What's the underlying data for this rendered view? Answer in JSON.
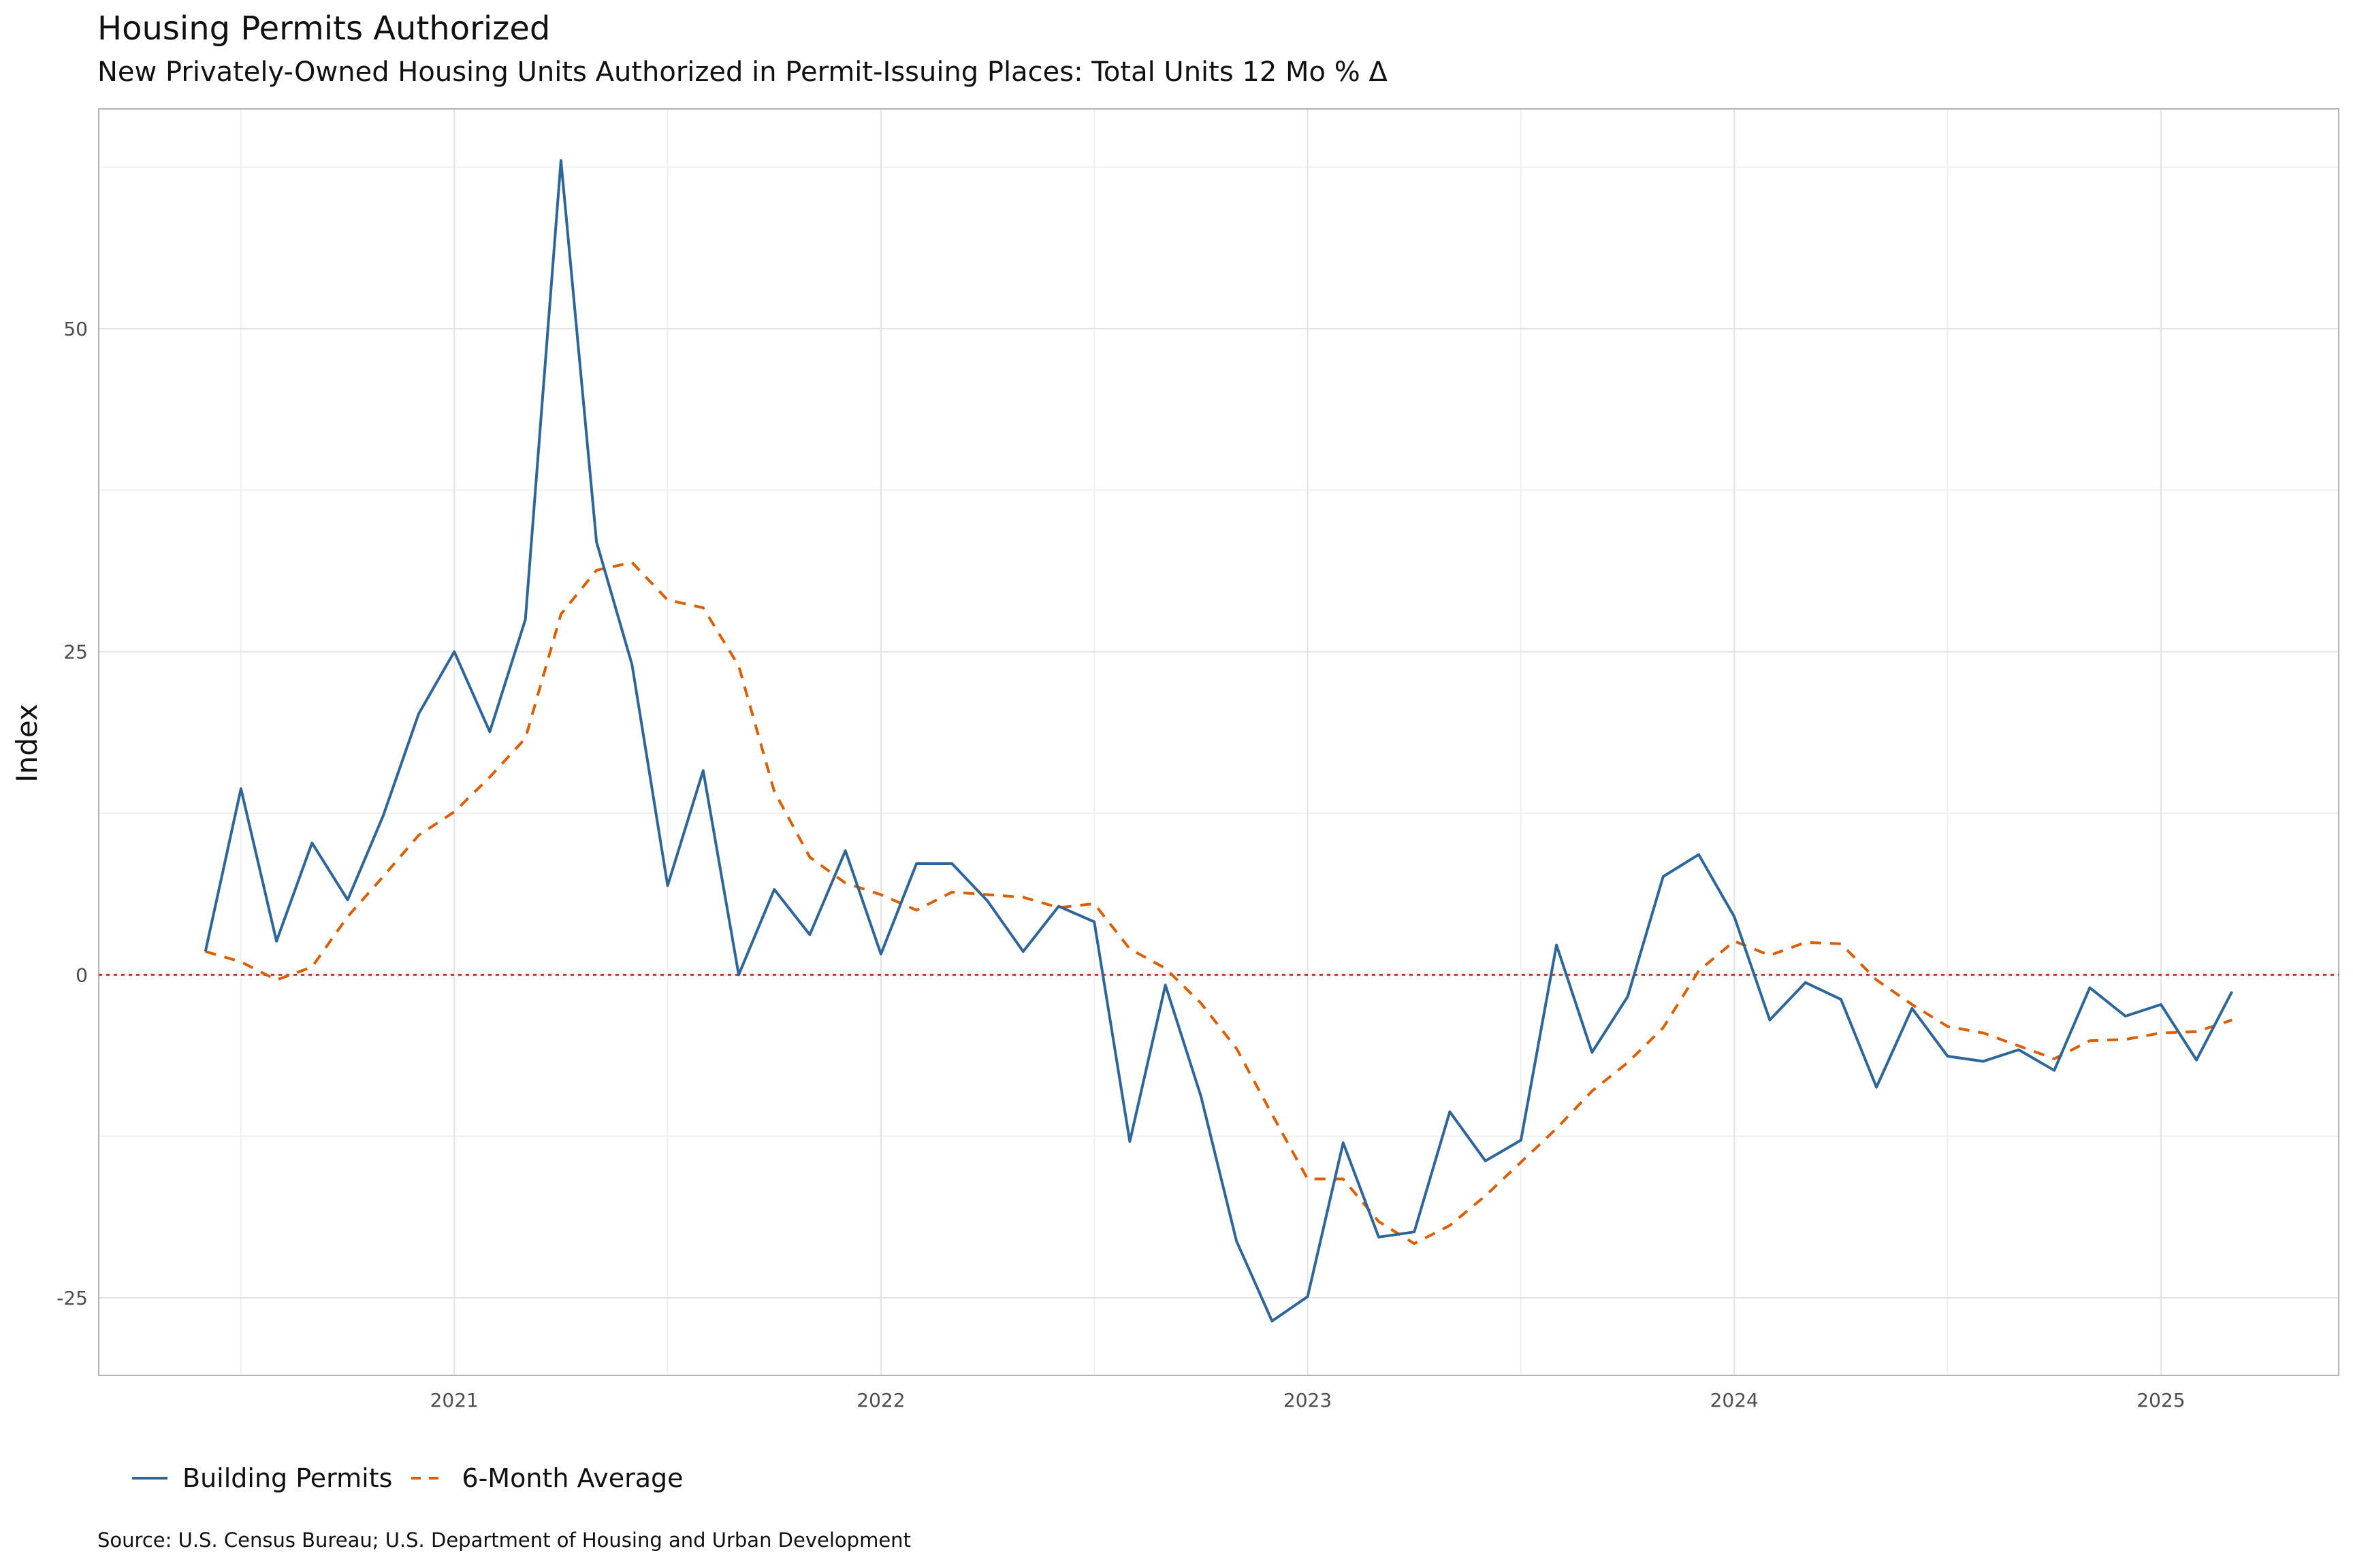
{
  "chart_data": {
    "type": "line",
    "title": "Housing Permits Authorized",
    "subtitle": "New Privately-Owned Housing Units Authorized in Permit-Issuing Places: Total Units 12 Mo % Δ",
    "ylabel": "Index",
    "xlabel": "",
    "caption": "Source: U.S. Census Bureau; U.S. Department of Housing and Urban Development",
    "x_ticks": [
      "2021",
      "2022",
      "2023",
      "2024",
      "2025"
    ],
    "y_ticks": [
      -25,
      0,
      25,
      50
    ],
    "ylim": [
      -31,
      67
    ],
    "xlim": [
      "2020-03",
      "2025-06"
    ],
    "grid": true,
    "legend_position": "bottom-left",
    "reference_line": {
      "y": 0,
      "style": "dotted",
      "color": "#C0392B"
    },
    "x": [
      "2020-06",
      "2020-07",
      "2020-08",
      "2020-09",
      "2020-10",
      "2020-11",
      "2020-12",
      "2021-01",
      "2021-02",
      "2021-03",
      "2021-04",
      "2021-05",
      "2021-06",
      "2021-07",
      "2021-08",
      "2021-09",
      "2021-10",
      "2021-11",
      "2021-12",
      "2022-01",
      "2022-02",
      "2022-03",
      "2022-04",
      "2022-05",
      "2022-06",
      "2022-07",
      "2022-08",
      "2022-09",
      "2022-10",
      "2022-11",
      "2022-12",
      "2023-01",
      "2023-02",
      "2023-03",
      "2023-04",
      "2023-05",
      "2023-06",
      "2023-07",
      "2023-08",
      "2023-09",
      "2023-10",
      "2023-11",
      "2023-12",
      "2024-01",
      "2024-02",
      "2024-03",
      "2024-04",
      "2024-05",
      "2024-06",
      "2024-07",
      "2024-08",
      "2024-09",
      "2024-10",
      "2024-11",
      "2024-12",
      "2025-01",
      "2025-02",
      "2025-03"
    ],
    "series": [
      {
        "name": "Building Permits",
        "color": "#2E6699",
        "style": "solid",
        "values": [
          1.8,
          14.4,
          2.6,
          10.2,
          5.8,
          12.3,
          20.2,
          25.0,
          18.8,
          27.5,
          63.0,
          33.5,
          24.0,
          6.9,
          15.8,
          0.0,
          6.6,
          3.1,
          9.6,
          1.6,
          8.6,
          8.6,
          5.7,
          1.8,
          5.3,
          4.1,
          -12.9,
          -0.8,
          -9.4,
          -20.6,
          -26.8,
          -24.9,
          -13.0,
          -20.3,
          -19.9,
          -10.6,
          -14.4,
          -12.8,
          2.3,
          -6.0,
          -1.7,
          7.6,
          9.3,
          4.5,
          -3.5,
          -0.6,
          -1.9,
          -8.7,
          -2.6,
          -6.3,
          -6.7,
          -5.8,
          -7.4,
          -1.0,
          -3.2,
          -2.3,
          -6.6,
          -1.3
        ]
      },
      {
        "name": "6-Month Average",
        "color": "#D95F02",
        "style": "dashed",
        "values": [
          1.8,
          1.0,
          -0.4,
          0.6,
          4.5,
          7.6,
          10.8,
          12.6,
          15.3,
          18.3,
          27.9,
          31.3,
          31.9,
          29.0,
          28.4,
          23.9,
          14.2,
          9.1,
          7.1,
          6.2,
          5.0,
          6.4,
          6.2,
          6.0,
          5.2,
          5.5,
          2.0,
          0.5,
          -2.2,
          -5.7,
          -10.8,
          -15.8,
          -15.8,
          -19.1,
          -20.8,
          -19.4,
          -17.1,
          -14.5,
          -11.9,
          -9.0,
          -6.8,
          -4.1,
          0.3,
          2.6,
          1.5,
          2.5,
          2.4,
          -0.4,
          -2.3,
          -4.0,
          -4.5,
          -5.5,
          -6.5,
          -5.1,
          -5.0,
          -4.5,
          -4.4,
          -3.5
        ]
      }
    ]
  }
}
